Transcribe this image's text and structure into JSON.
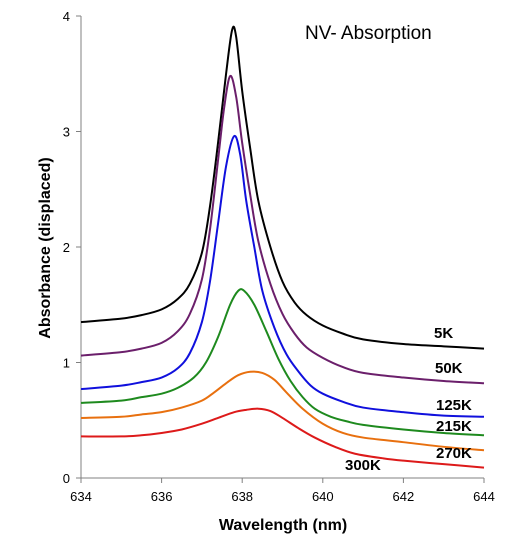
{
  "chart_data": {
    "type": "line",
    "title": "NV- Absorption",
    "xlabel": "Wavelength (nm)",
    "ylabel": "Absorbance (displaced)",
    "xlim": [
      634,
      644
    ],
    "ylim": [
      0,
      4
    ],
    "xticks": [
      "634",
      "636",
      "638",
      "640",
      "642",
      "644"
    ],
    "yticks": [
      "0",
      "1",
      "2",
      "3",
      "4"
    ],
    "grid": false,
    "legend": "none",
    "series": [
      {
        "name": "5K",
        "color": "#000000",
        "x": [
          634,
          635,
          635.5,
          636,
          636.4,
          636.7,
          637,
          637.2,
          637.4,
          637.6,
          637.75,
          637.85,
          638,
          638.2,
          638.4,
          638.7,
          639,
          639.3,
          639.6,
          640,
          640.5,
          641,
          642,
          643,
          644
        ],
        "y": [
          1.35,
          1.38,
          1.41,
          1.46,
          1.55,
          1.68,
          1.95,
          2.35,
          2.9,
          3.5,
          3.88,
          3.82,
          3.35,
          2.85,
          2.4,
          2.0,
          1.7,
          1.52,
          1.41,
          1.32,
          1.25,
          1.2,
          1.16,
          1.14,
          1.12
        ]
      },
      {
        "name": "50K",
        "color": "#6b1f6b",
        "x": [
          634,
          635,
          635.5,
          636,
          636.4,
          636.7,
          637,
          637.2,
          637.4,
          637.55,
          637.7,
          637.85,
          638,
          638.2,
          638.4,
          638.7,
          639,
          639.3,
          639.6,
          640,
          640.5,
          641,
          642,
          643,
          644
        ],
        "y": [
          1.06,
          1.09,
          1.12,
          1.17,
          1.27,
          1.42,
          1.72,
          2.15,
          2.75,
          3.2,
          3.48,
          3.3,
          2.9,
          2.45,
          2.05,
          1.68,
          1.42,
          1.25,
          1.13,
          1.04,
          0.96,
          0.91,
          0.87,
          0.84,
          0.82
        ]
      },
      {
        "name": "125K",
        "color": "#1010dd",
        "x": [
          634,
          635,
          635.5,
          636,
          636.4,
          636.7,
          637,
          637.2,
          637.4,
          637.6,
          637.8,
          637.95,
          638.1,
          638.3,
          638.5,
          638.8,
          639.1,
          639.4,
          639.7,
          640,
          640.5,
          641,
          642,
          643,
          644
        ],
        "y": [
          0.77,
          0.8,
          0.83,
          0.87,
          0.95,
          1.08,
          1.35,
          1.7,
          2.2,
          2.7,
          2.96,
          2.8,
          2.4,
          2.0,
          1.62,
          1.3,
          1.07,
          0.92,
          0.8,
          0.73,
          0.66,
          0.61,
          0.57,
          0.54,
          0.53
        ]
      },
      {
        "name": "215K",
        "color": "#1e8a1e",
        "x": [
          634,
          635,
          635.5,
          636,
          636.4,
          636.8,
          637.1,
          637.4,
          637.7,
          637.9,
          638.05,
          638.3,
          638.6,
          638.9,
          639.2,
          639.5,
          639.8,
          640.2,
          640.6,
          641,
          642,
          643,
          644
        ],
        "y": [
          0.65,
          0.67,
          0.7,
          0.73,
          0.78,
          0.87,
          1.0,
          1.22,
          1.5,
          1.62,
          1.62,
          1.5,
          1.27,
          1.03,
          0.84,
          0.7,
          0.6,
          0.53,
          0.49,
          0.46,
          0.42,
          0.39,
          0.37
        ]
      },
      {
        "name": "270K",
        "color": "#e8700f",
        "x": [
          634,
          635,
          635.5,
          636,
          636.5,
          637,
          637.3,
          637.6,
          637.9,
          638.2,
          638.5,
          638.8,
          639.1,
          639.5,
          640,
          640.5,
          641,
          642,
          643,
          644
        ],
        "y": [
          0.52,
          0.53,
          0.55,
          0.57,
          0.61,
          0.67,
          0.74,
          0.82,
          0.89,
          0.92,
          0.91,
          0.85,
          0.74,
          0.6,
          0.47,
          0.39,
          0.35,
          0.31,
          0.27,
          0.24
        ]
      },
      {
        "name": "300K",
        "color": "#dd1a1a",
        "x": [
          634,
          635,
          635.5,
          636,
          636.5,
          637,
          637.4,
          637.8,
          638.1,
          638.4,
          638.7,
          639,
          639.4,
          639.8,
          640.3,
          640.8,
          641.5,
          642,
          643,
          644
        ],
        "y": [
          0.36,
          0.36,
          0.37,
          0.39,
          0.42,
          0.47,
          0.52,
          0.57,
          0.59,
          0.6,
          0.58,
          0.52,
          0.43,
          0.35,
          0.27,
          0.21,
          0.17,
          0.15,
          0.12,
          0.09
        ]
      }
    ]
  }
}
